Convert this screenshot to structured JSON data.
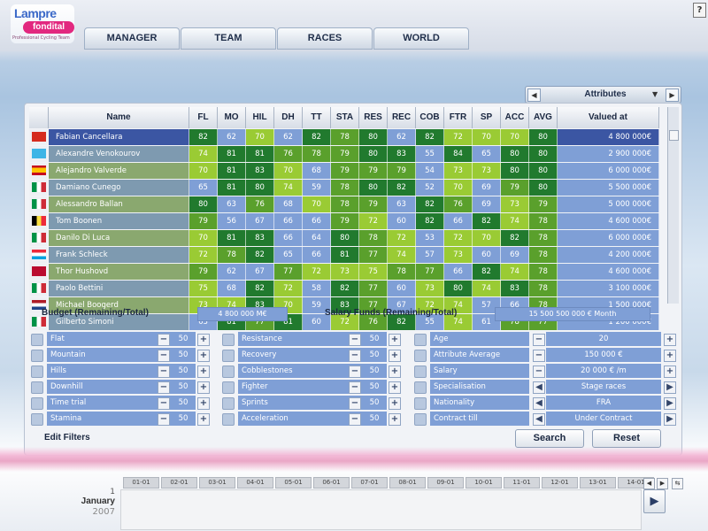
{
  "logo": {
    "line1": "Lampre",
    "line2": "fondital",
    "tagline": "Professional Cycling Team"
  },
  "help_label": "?",
  "tabs": [
    "MANAGER",
    "TEAM",
    "RACES",
    "WORLD"
  ],
  "attributes_dropdown": {
    "label": "Attributes",
    "prev": "◀",
    "next": "▶",
    "caret": "▼"
  },
  "table": {
    "headers": {
      "name": "Name",
      "stats": [
        "FL",
        "MO",
        "HIL",
        "DH",
        "TT",
        "STA",
        "RES",
        "REC",
        "COB",
        "FTR",
        "SP",
        "ACC",
        "AVG"
      ],
      "value": "Valued at"
    },
    "riders": [
      {
        "name": "Fabian Cancellara",
        "flag": "SUI",
        "stats": [
          82,
          62,
          70,
          62,
          82,
          78,
          80,
          62,
          82,
          72,
          70,
          70,
          80
        ],
        "value": "4 800 000€"
      },
      {
        "name": "Alexandre Venokourov",
        "flag": "KAZ",
        "stats": [
          74,
          81,
          81,
          76,
          78,
          79,
          80,
          83,
          55,
          84,
          65,
          80,
          80
        ],
        "value": "2 900 000€"
      },
      {
        "name": "Alejandro Valverde",
        "flag": "ESP",
        "stats": [
          70,
          81,
          83,
          70,
          68,
          79,
          79,
          79,
          54,
          73,
          73,
          80,
          80
        ],
        "value": "6 000 000€"
      },
      {
        "name": "Damiano Cunego",
        "flag": "ITA",
        "stats": [
          65,
          81,
          80,
          74,
          59,
          78,
          80,
          82,
          52,
          70,
          69,
          79,
          80
        ],
        "value": "5 500 000€"
      },
      {
        "name": "Alessandro Ballan",
        "flag": "ITA",
        "stats": [
          80,
          63,
          76,
          68,
          70,
          78,
          79,
          63,
          82,
          76,
          69,
          73,
          79
        ],
        "value": "5 000 000€"
      },
      {
        "name": "Tom Boonen",
        "flag": "BEL",
        "stats": [
          79,
          56,
          67,
          66,
          66,
          79,
          72,
          60,
          82,
          66,
          82,
          74,
          78
        ],
        "value": "4 600 000€"
      },
      {
        "name": "Danilo Di Luca",
        "flag": "ITA",
        "stats": [
          70,
          81,
          83,
          66,
          64,
          80,
          78,
          72,
          53,
          72,
          70,
          82,
          78
        ],
        "value": "6 000 000€"
      },
      {
        "name": "Frank Schleck",
        "flag": "LUX",
        "stats": [
          72,
          78,
          82,
          65,
          66,
          81,
          77,
          74,
          57,
          73,
          60,
          69,
          78
        ],
        "value": "4 200 000€"
      },
      {
        "name": "Thor Hushovd",
        "flag": "NOR",
        "stats": [
          79,
          62,
          67,
          77,
          72,
          73,
          75,
          78,
          77,
          66,
          82,
          74,
          78
        ],
        "value": "4 600 000€"
      },
      {
        "name": "Paolo Bettini",
        "flag": "ITA",
        "stats": [
          75,
          68,
          82,
          72,
          58,
          82,
          77,
          60,
          73,
          80,
          74,
          83,
          78
        ],
        "value": "3 100 000€"
      },
      {
        "name": "Michael Boogerd",
        "flag": "NED",
        "stats": [
          73,
          74,
          83,
          70,
          59,
          83,
          77,
          67,
          72,
          74,
          57,
          66,
          78
        ],
        "value": "1 500 000€"
      },
      {
        "name": "Gilberto Simoni",
        "flag": "ITA",
        "stats": [
          63,
          81,
          77,
          81,
          60,
          72,
          76,
          82,
          55,
          74,
          61,
          78,
          77
        ],
        "value": "1 200 000€"
      }
    ]
  },
  "budget": {
    "label": "Budget (Remaining/Total)",
    "value": "4 800 000 M€",
    "salary_label": "Salary Funds (Remaining/Total)",
    "salary_value": "15 500 500 000 € Month"
  },
  "filters": {
    "col1": [
      {
        "label": "Flat",
        "value": "50"
      },
      {
        "label": "Mountain",
        "value": "50"
      },
      {
        "label": "Hills",
        "value": "50"
      },
      {
        "label": "Downhill",
        "value": "50"
      },
      {
        "label": "Time trial",
        "value": "50"
      },
      {
        "label": "Stamina",
        "value": "50"
      }
    ],
    "col2": [
      {
        "label": "Resistance",
        "value": "50"
      },
      {
        "label": "Recovery",
        "value": "50"
      },
      {
        "label": "Cobblestones",
        "value": "50"
      },
      {
        "label": "Fighter",
        "value": "50"
      },
      {
        "label": "Sprints",
        "value": "50"
      },
      {
        "label": "Acceleration",
        "value": "50"
      }
    ],
    "col3": [
      {
        "label": "Age",
        "value": "20"
      },
      {
        "label": "Attribute Average",
        "value": "150 000 €"
      },
      {
        "label": "Salary",
        "value": "20 000 € /m"
      },
      {
        "label": "Specialisation",
        "value": "Stage races"
      },
      {
        "label": "Nationality",
        "value": "FRA"
      },
      {
        "label": "Contract till",
        "value": "Under Contract"
      }
    ],
    "minus": "−",
    "plus": "+",
    "left": "◀",
    "right": "▶"
  },
  "edit_filters": "Edit Filters",
  "search_label": "Search",
  "reset_label": "Reset",
  "calendar": {
    "day": "1",
    "month": "January",
    "year": "2007",
    "dates": [
      "01-01",
      "02-01",
      "03-01",
      "04-01",
      "05-01",
      "06-01",
      "07-01",
      "08-01",
      "09-01",
      "10-01",
      "11-01",
      "12-01",
      "13-01",
      "14-01"
    ],
    "prev": "◀",
    "next": "▶",
    "loop": "⇆",
    "advance": "▶"
  },
  "colors": {
    "cell_low": "#7f9fd6",
    "cell_mid": "#9acb34",
    "cell_high": "#5aa02c",
    "cell_top": "#217a2e",
    "row_selected": "#3b56a3",
    "accent": "#e2287f"
  }
}
